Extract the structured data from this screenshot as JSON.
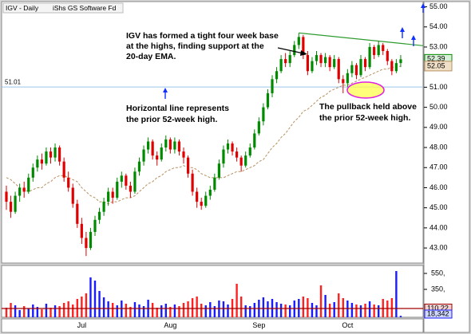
{
  "header": {
    "title": "IGV - Daily",
    "subtitle": "iShs GS Software Fd"
  },
  "chart_data": {
    "type": "candlestick",
    "categories": [
      null,
      null,
      null,
      null,
      null,
      null,
      null,
      null,
      null,
      null,
      null,
      null,
      null,
      null,
      null,
      null,
      null,
      "Jul",
      null,
      null,
      null,
      null,
      null,
      null,
      null,
      null,
      null,
      null,
      null,
      null,
      null,
      null,
      null,
      null,
      null,
      null,
      null,
      "Aug",
      null,
      null,
      null,
      null,
      null,
      null,
      null,
      null,
      null,
      null,
      null,
      null,
      null,
      null,
      null,
      null,
      null,
      null,
      null,
      "Sep",
      null,
      null,
      null,
      null,
      null,
      null,
      null,
      null,
      null,
      null,
      null,
      null,
      null,
      null,
      null,
      null,
      null,
      null,
      null,
      "Oct",
      null,
      null,
      null,
      null,
      null,
      null,
      null,
      null,
      null,
      null,
      null,
      null
    ],
    "candles": [
      [
        45.8,
        46.1,
        44.9,
        45.3
      ],
      [
        45.3,
        45.6,
        44.5,
        44.8
      ],
      [
        44.8,
        45.8,
        44.7,
        45.6
      ],
      [
        45.6,
        46.2,
        45.3,
        46.0
      ],
      [
        46.0,
        46.3,
        45.5,
        45.8
      ],
      [
        45.8,
        46.7,
        45.7,
        46.5
      ],
      [
        46.5,
        47.2,
        46.3,
        47.0
      ],
      [
        47.0,
        47.6,
        46.8,
        47.4
      ],
      [
        47.4,
        47.7,
        46.9,
        47.2
      ],
      [
        47.2,
        48.0,
        47.1,
        47.8
      ],
      [
        47.8,
        48.0,
        47.2,
        47.5
      ],
      [
        47.5,
        48.2,
        47.3,
        48.0
      ],
      [
        48.0,
        48.1,
        47.1,
        47.3
      ],
      [
        47.3,
        47.5,
        46.3,
        46.5
      ],
      [
        46.5,
        46.8,
        45.8,
        46.0
      ],
      [
        46.0,
        46.2,
        45.0,
        45.2
      ],
      [
        45.2,
        45.4,
        44.0,
        44.2
      ],
      [
        44.2,
        44.5,
        43.2,
        43.5
      ],
      [
        43.5,
        43.8,
        42.6,
        43.0
      ],
      [
        43.0,
        44.0,
        42.9,
        43.8
      ],
      [
        43.8,
        44.6,
        43.6,
        44.4
      ],
      [
        44.4,
        45.0,
        44.2,
        44.8
      ],
      [
        44.8,
        45.5,
        44.6,
        45.3
      ],
      [
        45.3,
        46.0,
        45.1,
        45.8
      ],
      [
        45.8,
        46.0,
        45.2,
        45.5
      ],
      [
        45.5,
        46.5,
        45.4,
        46.3
      ],
      [
        46.3,
        46.8,
        46.0,
        46.6
      ],
      [
        46.6,
        46.7,
        45.9,
        46.1
      ],
      [
        46.1,
        46.3,
        45.5,
        45.8
      ],
      [
        45.8,
        47.0,
        45.7,
        46.8
      ],
      [
        46.8,
        47.5,
        46.6,
        47.3
      ],
      [
        47.3,
        48.1,
        47.1,
        47.9
      ],
      [
        47.9,
        48.5,
        47.7,
        48.3
      ],
      [
        48.3,
        48.4,
        47.4,
        47.6
      ],
      [
        47.6,
        47.8,
        47.1,
        47.4
      ],
      [
        47.4,
        48.2,
        47.3,
        48.0
      ],
      [
        48.0,
        48.6,
        47.8,
        48.4
      ],
      [
        48.4,
        48.5,
        47.7,
        47.9
      ],
      [
        47.9,
        48.5,
        47.7,
        48.3
      ],
      [
        48.3,
        48.4,
        47.6,
        47.8
      ],
      [
        47.8,
        48.0,
        47.2,
        47.5
      ],
      [
        47.5,
        47.6,
        46.5,
        46.7
      ],
      [
        46.7,
        46.9,
        45.6,
        45.8
      ],
      [
        45.8,
        46.0,
        45.0,
        45.3
      ],
      [
        45.3,
        45.5,
        44.9,
        45.1
      ],
      [
        45.1,
        45.8,
        45.0,
        45.6
      ],
      [
        45.6,
        46.1,
        45.4,
        45.9
      ],
      [
        45.9,
        46.7,
        45.8,
        46.5
      ],
      [
        46.5,
        47.4,
        46.4,
        47.2
      ],
      [
        47.2,
        48.1,
        47.0,
        47.9
      ],
      [
        47.9,
        48.4,
        47.7,
        48.2
      ],
      [
        48.2,
        48.3,
        47.6,
        47.8
      ],
      [
        47.8,
        48.0,
        47.3,
        47.5
      ],
      [
        47.5,
        47.6,
        46.8,
        47.1
      ],
      [
        47.1,
        47.8,
        47.0,
        47.6
      ],
      [
        47.6,
        48.2,
        47.5,
        48.0
      ],
      [
        48.0,
        48.9,
        47.9,
        48.7
      ],
      [
        48.7,
        49.5,
        48.6,
        49.3
      ],
      [
        49.3,
        50.2,
        49.1,
        50.0
      ],
      [
        50.0,
        50.9,
        49.9,
        50.7
      ],
      [
        50.7,
        51.6,
        50.5,
        51.4
      ],
      [
        51.4,
        52.0,
        51.2,
        51.8
      ],
      [
        51.8,
        52.6,
        51.7,
        52.4
      ],
      [
        52.4,
        52.7,
        52.0,
        52.2
      ],
      [
        52.2,
        52.8,
        52.0,
        52.6
      ],
      [
        52.6,
        53.3,
        52.5,
        53.1
      ],
      [
        53.1,
        53.7,
        52.9,
        53.5
      ],
      [
        53.5,
        53.6,
        52.4,
        52.6
      ],
      [
        52.6,
        52.8,
        51.6,
        51.8
      ],
      [
        51.8,
        52.5,
        51.7,
        52.3
      ],
      [
        52.3,
        52.8,
        52.1,
        52.6
      ],
      [
        52.6,
        52.7,
        52.0,
        52.2
      ],
      [
        52.2,
        52.7,
        52.0,
        52.5
      ],
      [
        52.5,
        52.6,
        51.8,
        52.0
      ],
      [
        52.0,
        52.6,
        51.9,
        52.4
      ],
      [
        52.4,
        52.5,
        51.2,
        51.4
      ],
      [
        51.4,
        51.6,
        50.7,
        51.2
      ],
      [
        51.2,
        51.9,
        51.0,
        51.7
      ],
      [
        51.7,
        52.3,
        51.5,
        52.1
      ],
      [
        52.1,
        52.2,
        51.4,
        51.6
      ],
      [
        51.6,
        52.6,
        51.5,
        52.4
      ],
      [
        52.4,
        52.5,
        51.8,
        52.0
      ],
      [
        52.0,
        53.2,
        51.9,
        53.0
      ],
      [
        53.0,
        53.1,
        52.4,
        52.6
      ],
      [
        52.6,
        53.3,
        52.5,
        53.1
      ],
      [
        53.1,
        53.2,
        52.6,
        52.8
      ],
      [
        52.8,
        52.9,
        52.1,
        52.3
      ],
      [
        52.3,
        52.4,
        51.6,
        51.8
      ],
      [
        51.8,
        52.4,
        51.7,
        52.2
      ],
      [
        52.2,
        52.6,
        52.0,
        52.39
      ]
    ],
    "ema20": [
      46.5,
      46.4,
      46.2,
      46.0,
      45.9,
      45.8,
      45.9,
      46.0,
      46.0,
      46.2,
      46.3,
      46.5,
      46.6,
      46.6,
      46.5,
      46.4,
      46.3,
      46.0,
      45.8,
      45.6,
      45.5,
      45.3,
      45.3,
      45.2,
      45.3,
      45.3,
      45.4,
      45.5,
      45.5,
      45.6,
      45.8,
      46.0,
      46.2,
      46.3,
      46.5,
      46.6,
      46.8,
      46.9,
      47.0,
      47.0,
      47.1,
      47.0,
      47.0,
      46.9,
      46.7,
      46.6,
      46.5,
      46.5,
      46.5,
      46.5,
      46.6,
      46.7,
      46.8,
      46.8,
      46.9,
      47.0,
      47.1,
      47.3,
      47.4,
      47.7,
      48.0,
      48.2,
      48.5,
      48.7,
      49.0,
      49.3,
      49.5,
      49.8,
      49.9,
      50.1,
      50.3,
      50.5,
      50.6,
      50.8,
      50.9,
      51.0,
      51.1,
      51.1,
      51.2,
      51.3,
      51.4,
      51.5,
      51.6,
      51.7,
      51.8,
      51.9,
      51.9,
      52.0,
      52.0,
      52.05
    ],
    "ylim": [
      42.25,
      55.26
    ],
    "yticks": [
      {
        "value": 43,
        "label": "43.00"
      },
      {
        "value": 44,
        "label": "44.00"
      },
      {
        "value": 45,
        "label": "45.00"
      },
      {
        "value": 46,
        "label": "46.00"
      },
      {
        "value": 47,
        "label": "47.00"
      },
      {
        "value": 48,
        "label": "48.00"
      },
      {
        "value": 49,
        "label": "49.00"
      },
      {
        "value": 50,
        "label": "50.00"
      },
      {
        "value": 51,
        "label": "51.00"
      },
      {
        "value": 53,
        "label": "53.00"
      },
      {
        "value": 54,
        "label": "54.00"
      },
      {
        "value": 55,
        "label": "55.00"
      }
    ],
    "last_price": 52.39,
    "ema_last": 52.05,
    "prior_high": 51.01,
    "trendline": {
      "from_index": 66,
      "from": 53.7,
      "to_index": 97,
      "to": 53.0,
      "color": "#2e9b2e"
    },
    "up_color": "#008a00",
    "down_color": "#e00000",
    "ema_color": "#b89060",
    "prior_high_color": "#9ec4ea",
    "volume": {
      "values": [
        120,
        180,
        150,
        90,
        140,
        110,
        160,
        130,
        100,
        170,
        120,
        150,
        140,
        180,
        200,
        160,
        230,
        260,
        300,
        500,
        460,
        330,
        250,
        200,
        180,
        150,
        210,
        170,
        130,
        190,
        160,
        140,
        220,
        180,
        120,
        150,
        170,
        130,
        160,
        140,
        180,
        200,
        240,
        260,
        170,
        150,
        190,
        140,
        210,
        200,
        160,
        230,
        420,
        260,
        150,
        140,
        180,
        220,
        250,
        200,
        230,
        190,
        170,
        160,
        150,
        210,
        230,
        260,
        240,
        180,
        150,
        400,
        280,
        170,
        190,
        300,
        240,
        210,
        180,
        160,
        150,
        170,
        200,
        160,
        150,
        230,
        210,
        240,
        580,
        18
      ],
      "ylim": [
        0,
        650
      ],
      "yticks": [
        {
          "value": 550,
          "label": "550,"
        },
        {
          "value": 350,
          "label": "350,"
        }
      ],
      "ma": 110.22,
      "last_label": "18,342",
      "up_color": "#1a1aff",
      "down_color": "#ff2020",
      "ma_color": "#a00000"
    }
  },
  "annotations": {
    "base": [
      "IGV has formed a tight four week base",
      "at the highs, finding support at the",
      "20-day EMA."
    ],
    "horizontal": [
      "Horizontal line represents",
      "the prior 52-week high."
    ],
    "pullback": [
      "The pullback held above",
      "the prior 52-week high."
    ]
  }
}
